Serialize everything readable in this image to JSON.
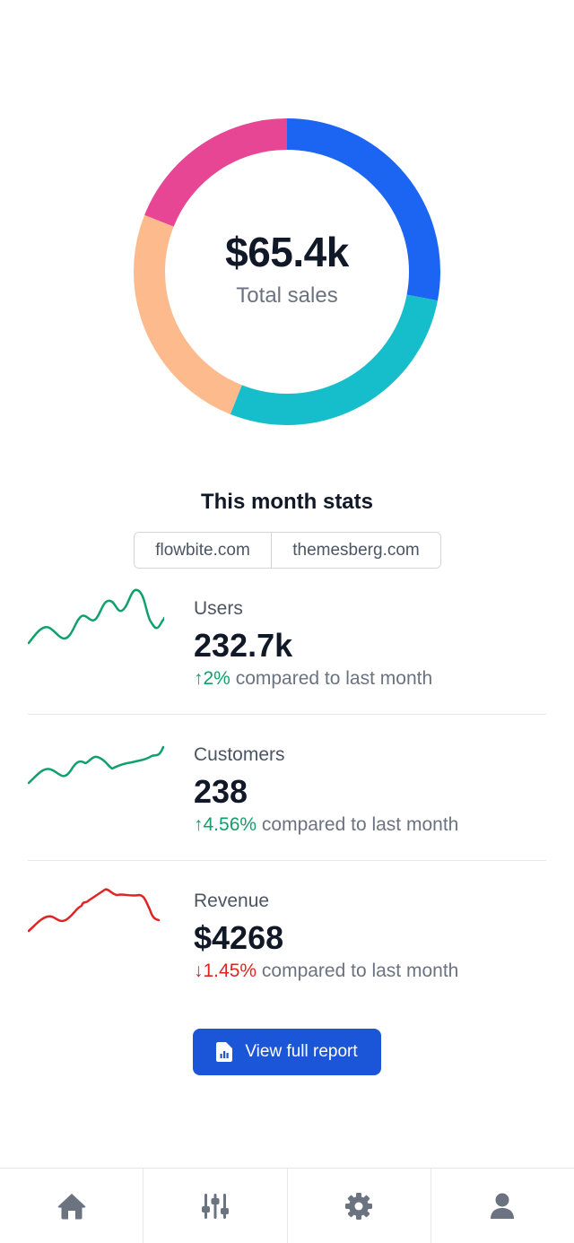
{
  "donut": {
    "value": "$65.4k",
    "label": "Total sales",
    "segments": [
      {
        "color": "#1c64f2",
        "share": 0.28
      },
      {
        "color": "#16bdca",
        "share": 0.28
      },
      {
        "color": "#fdba8c",
        "share": 0.25
      },
      {
        "color": "#e74694",
        "share": 0.19
      }
    ]
  },
  "stats": {
    "title": "This month stats",
    "sources": [
      "flowbite.com",
      "themesberg.com"
    ],
    "rows": [
      {
        "label": "Users",
        "value": "232.7k",
        "arrow": "↑",
        "delta": "2%",
        "direction": "up",
        "suffix": "compared to last month",
        "color": "#10a16b"
      },
      {
        "label": "Customers",
        "value": "238",
        "arrow": "↑",
        "delta": "4.56%",
        "direction": "up",
        "suffix": "compared to last month",
        "color": "#10a16b"
      },
      {
        "label": "Revenue",
        "value": "$4268",
        "arrow": "↓",
        "delta": "1.45%",
        "direction": "down",
        "suffix": "compared to last month",
        "color": "#e02424"
      }
    ]
  },
  "report_button": {
    "label": "View full report",
    "icon": "file-chart-icon"
  },
  "nav": {
    "items": [
      {
        "icon": "home-icon"
      },
      {
        "icon": "sliders-icon"
      },
      {
        "icon": "gear-icon"
      },
      {
        "icon": "user-icon"
      }
    ]
  },
  "colors": {
    "primary": "#1c56d8",
    "up": "#10a16b",
    "down": "#e02424",
    "icon": "#6b7280"
  }
}
